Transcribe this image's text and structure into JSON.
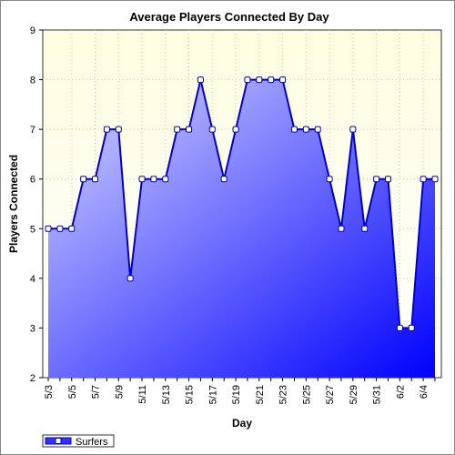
{
  "chart_data": {
    "type": "area",
    "title": "Average Players Connected By Day",
    "xlabel": "Day",
    "ylabel": "Players Connected",
    "ylim": [
      2,
      9
    ],
    "yticks": [
      2,
      3,
      4,
      5,
      6,
      7,
      8,
      9
    ],
    "categories": [
      "5/3",
      "5/4",
      "5/5",
      "5/6",
      "5/7",
      "5/8",
      "5/9",
      "5/10",
      "5/11",
      "5/12",
      "5/13",
      "5/14",
      "5/15",
      "5/16",
      "5/17",
      "5/18",
      "5/19",
      "5/20",
      "5/21",
      "5/22",
      "5/23",
      "5/24",
      "5/25",
      "5/26",
      "5/27",
      "5/28",
      "5/29",
      "5/30",
      "5/31",
      "6/1",
      "6/2",
      "6/3",
      "6/4",
      "6/5"
    ],
    "x_tick_labels": [
      "5/3",
      "5/5",
      "5/7",
      "5/9",
      "5/11",
      "5/13",
      "5/15",
      "5/17",
      "5/19",
      "5/21",
      "5/23",
      "5/25",
      "5/27",
      "5/29",
      "5/31",
      "6/2",
      "6/4"
    ],
    "series": [
      {
        "name": "Surfers",
        "values": [
          5,
          5,
          5,
          6,
          6,
          7,
          7,
          4,
          6,
          6,
          6,
          7,
          7,
          8,
          7,
          6,
          7,
          8,
          8,
          8,
          8,
          7,
          7,
          7,
          6,
          5,
          7,
          5,
          6,
          6,
          3,
          3,
          6,
          6
        ]
      }
    ],
    "grid": true,
    "legend_position": "bottom-left",
    "colors": {
      "plot_bg_top": "#fefee0",
      "plot_bg_bottom": "#fbfbd8",
      "line": "#0000cc",
      "fill_light": "#d8d8ff",
      "fill_dark": "#0000ff",
      "marker_fill": "#ffffff",
      "grid": "#cccc99"
    }
  }
}
